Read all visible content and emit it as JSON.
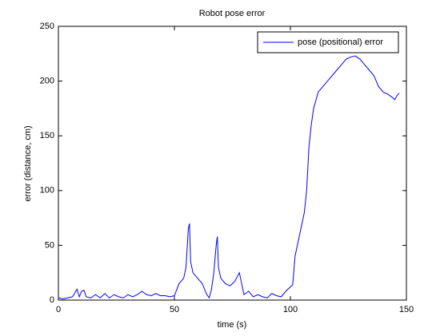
{
  "chart_data": {
    "type": "line",
    "title": "Robot pose error",
    "xlabel": "time (s)",
    "ylabel": "error (distance, cm)",
    "x": [
      0,
      2,
      4,
      6,
      7,
      8,
      9,
      10,
      11,
      12,
      14,
      16,
      18,
      20,
      22,
      24,
      26,
      28,
      30,
      32,
      34,
      36,
      38,
      40,
      42,
      44,
      46,
      48,
      50,
      52,
      54,
      55,
      56,
      56.5,
      57,
      58,
      60,
      62,
      64,
      65,
      66,
      67,
      68,
      68.5,
      69,
      70,
      72,
      74,
      76,
      78,
      79,
      80,
      82,
      84,
      86,
      88,
      90,
      92,
      94,
      96,
      98,
      100,
      101,
      102,
      104,
      106,
      107,
      108,
      109,
      110,
      112,
      114,
      116,
      118,
      120,
      122,
      124,
      126,
      128,
      130,
      132,
      134,
      136,
      138,
      140,
      142,
      144,
      145,
      146,
      147
    ],
    "series": [
      {
        "name": "pose (positional) error",
        "color": "#0000ff",
        "values": [
          2,
          1,
          2,
          3,
          6,
          10,
          3,
          8,
          9,
          3,
          2,
          5,
          2,
          6,
          2,
          5,
          3,
          2,
          5,
          3,
          5,
          8,
          5,
          4,
          6,
          4,
          4,
          3,
          4,
          15,
          20,
          30,
          65,
          70,
          35,
          25,
          20,
          15,
          5,
          2,
          10,
          25,
          50,
          58,
          30,
          20,
          15,
          13,
          17,
          25,
          15,
          5,
          8,
          3,
          5,
          3,
          2,
          6,
          4,
          3,
          8,
          12,
          14,
          40,
          60,
          80,
          100,
          140,
          160,
          175,
          190,
          195,
          200,
          205,
          210,
          215,
          220,
          222,
          223,
          220,
          215,
          210,
          205,
          195,
          190,
          188,
          185,
          183,
          187,
          189
        ]
      }
    ],
    "xlim": [
      0,
      150
    ],
    "ylim": [
      0,
      250
    ],
    "xticks": [
      0,
      50,
      100,
      150
    ],
    "yticks": [
      0,
      50,
      100,
      150,
      200,
      250
    ],
    "legend": "northeast"
  }
}
